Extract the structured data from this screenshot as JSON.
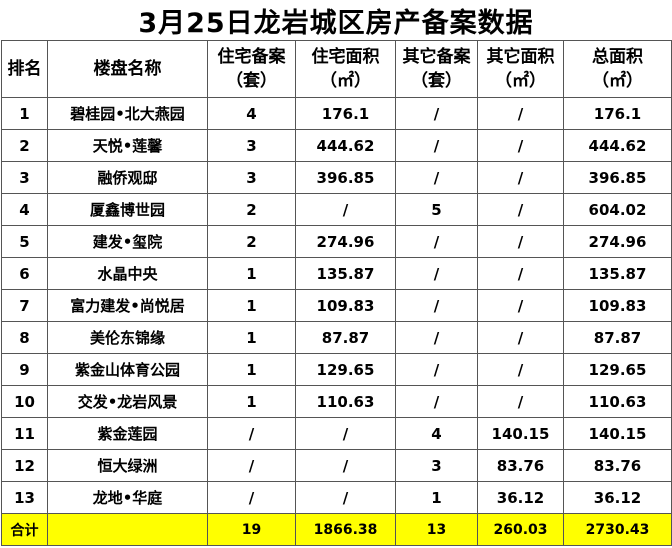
{
  "title": "3月25日龙岩城区房产备案数据",
  "headers": {
    "rank": "排名",
    "name": "楼盘名称",
    "res_count_1": "住宅备案",
    "res_count_2": "（套）",
    "res_area_1": "住宅面积",
    "res_area_2": "（㎡）",
    "oth_count_1": "其它备案",
    "oth_count_2": "（套）",
    "oth_area_1": "其它面积",
    "oth_area_2": "（㎡）",
    "total_1": "总面积",
    "total_2": "（㎡）"
  },
  "rows": [
    {
      "rank": "1",
      "name": "碧桂园•北大燕园",
      "res_count": "4",
      "res_area": "176.1",
      "oth_count": "/",
      "oth_area": "/",
      "total": "176.1"
    },
    {
      "rank": "2",
      "name": "天悦•莲馨",
      "res_count": "3",
      "res_area": "444.62",
      "oth_count": "/",
      "oth_area": "/",
      "total": "444.62"
    },
    {
      "rank": "3",
      "name": "融侨观邸",
      "res_count": "3",
      "res_area": "396.85",
      "oth_count": "/",
      "oth_area": "/",
      "total": "396.85"
    },
    {
      "rank": "4",
      "name": "厦鑫博世园",
      "res_count": "2",
      "res_area": "/",
      "oth_count": "5",
      "oth_area": "/",
      "total": "604.02"
    },
    {
      "rank": "5",
      "name": "建发•玺院",
      "res_count": "2",
      "res_area": "274.96",
      "oth_count": "/",
      "oth_area": "/",
      "total": "274.96"
    },
    {
      "rank": "6",
      "name": "水晶中央",
      "res_count": "1",
      "res_area": "135.87",
      "oth_count": "/",
      "oth_area": "/",
      "total": "135.87"
    },
    {
      "rank": "7",
      "name": "富力建发•尚悦居",
      "res_count": "1",
      "res_area": "109.83",
      "oth_count": "/",
      "oth_area": "/",
      "total": "109.83"
    },
    {
      "rank": "8",
      "name": "美伦东锦缘",
      "res_count": "1",
      "res_area": "87.87",
      "oth_count": "/",
      "oth_area": "/",
      "total": "87.87"
    },
    {
      "rank": "9",
      "name": "紫金山体育公园",
      "res_count": "1",
      "res_area": "129.65",
      "oth_count": "/",
      "oth_area": "/",
      "total": "129.65"
    },
    {
      "rank": "10",
      "name": "交发•龙岩风景",
      "res_count": "1",
      "res_area": "110.63",
      "oth_count": "/",
      "oth_area": "/",
      "total": "110.63"
    },
    {
      "rank": "11",
      "name": "紫金莲园",
      "res_count": "/",
      "res_area": "/",
      "oth_count": "4",
      "oth_area": "140.15",
      "total": "140.15"
    },
    {
      "rank": "12",
      "name": "恒大绿洲",
      "res_count": "/",
      "res_area": "/",
      "oth_count": "3",
      "oth_area": "83.76",
      "total": "83.76"
    },
    {
      "rank": "13",
      "name": "龙地•华庭",
      "res_count": "/",
      "res_area": "/",
      "oth_count": "1",
      "oth_area": "36.12",
      "total": "36.12"
    }
  ],
  "totals": {
    "label": "合计",
    "res_count": "19",
    "res_area": "1866.38",
    "oth_count": "13",
    "oth_area": "260.03",
    "total": "2730.43"
  },
  "colors": {
    "totals_row_bg": "#ffff00",
    "grid_line": "#555555"
  }
}
